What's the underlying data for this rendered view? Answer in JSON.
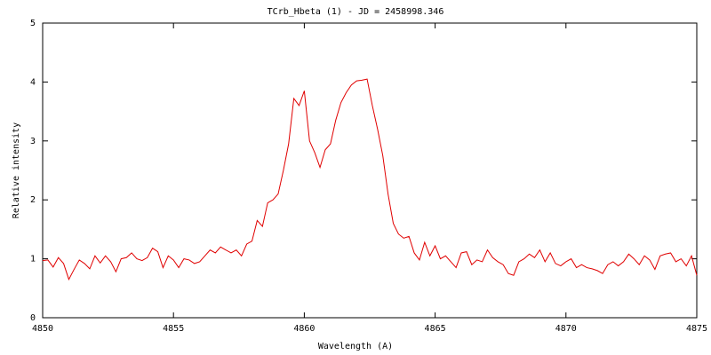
{
  "chart_data": {
    "type": "line",
    "title": "TCrb_Hbeta (1) - JD = 2458998.346",
    "xlabel": "Wavelength (A)",
    "ylabel": "Relative intensity",
    "color": "#e00000",
    "x": [
      4850.0,
      4850.2,
      4850.4,
      4850.6,
      4850.8,
      4851.0,
      4851.2,
      4851.4,
      4851.6,
      4851.8,
      4852.0,
      4852.2,
      4852.4,
      4852.6,
      4852.8,
      4853.0,
      4853.2,
      4853.4,
      4853.6,
      4853.8,
      4854.0,
      4854.2,
      4854.4,
      4854.6,
      4854.8,
      4855.0,
      4855.2,
      4855.4,
      4855.6,
      4855.8,
      4856.0,
      4856.2,
      4856.4,
      4856.6,
      4856.8,
      4857.0,
      4857.2,
      4857.4,
      4857.6,
      4857.8,
      4858.0,
      4858.2,
      4858.4,
      4858.6,
      4858.8,
      4859.0,
      4859.2,
      4859.4,
      4859.6,
      4859.8,
      4860.0,
      4860.2,
      4860.4,
      4860.6,
      4860.8,
      4861.0,
      4861.2,
      4861.4,
      4861.6,
      4861.8,
      4862.0,
      4862.2,
      4862.4,
      4862.6,
      4862.8,
      4863.0,
      4863.2,
      4863.4,
      4863.6,
      4863.8,
      4864.0,
      4864.2,
      4864.4,
      4864.6,
      4864.8,
      4865.0,
      4865.2,
      4865.4,
      4865.6,
      4865.8,
      4866.0,
      4866.2,
      4866.4,
      4866.6,
      4866.8,
      4867.0,
      4867.2,
      4867.4,
      4867.6,
      4867.8,
      4868.0,
      4868.2,
      4868.4,
      4868.6,
      4868.8,
      4869.0,
      4869.2,
      4869.4,
      4869.6,
      4869.8,
      4870.0,
      4870.2,
      4870.4,
      4870.6,
      4870.8,
      4871.0,
      4871.2,
      4871.4,
      4871.6,
      4871.8,
      4872.0,
      4872.2,
      4872.4,
      4872.6,
      4872.8,
      4873.0,
      4873.2,
      4873.4,
      4873.6,
      4873.8,
      4874.0,
      4874.2,
      4874.4,
      4874.6,
      4874.8,
      4875.0
    ],
    "values": [
      0.97,
      0.98,
      0.86,
      1.02,
      0.92,
      0.65,
      0.82,
      0.98,
      0.92,
      0.83,
      1.05,
      0.93,
      1.05,
      0.95,
      0.78,
      1.0,
      1.02,
      1.1,
      1.0,
      0.97,
      1.02,
      1.18,
      1.12,
      0.85,
      1.05,
      0.98,
      0.85,
      1.0,
      0.98,
      0.92,
      0.95,
      1.05,
      1.15,
      1.1,
      1.2,
      1.15,
      1.1,
      1.15,
      1.05,
      1.25,
      1.3,
      1.65,
      1.55,
      1.95,
      2.0,
      2.1,
      2.5,
      2.95,
      3.72,
      3.6,
      3.85,
      3.0,
      2.8,
      2.55,
      2.85,
      2.95,
      3.35,
      3.65,
      3.82,
      3.95,
      4.02,
      4.03,
      4.05,
      3.6,
      3.2,
      2.75,
      2.1,
      1.6,
      1.42,
      1.35,
      1.38,
      1.1,
      0.98,
      1.28,
      1.05,
      1.22,
      1.0,
      1.05,
      0.95,
      0.85,
      1.1,
      1.12,
      0.9,
      0.98,
      0.95,
      1.15,
      1.02,
      0.95,
      0.9,
      0.75,
      0.72,
      0.95,
      1.0,
      1.08,
      1.02,
      1.15,
      0.95,
      1.1,
      0.92,
      0.88,
      0.95,
      1.0,
      0.85,
      0.9,
      0.85,
      0.83,
      0.8,
      0.75,
      0.9,
      0.95,
      0.88,
      0.95,
      1.08,
      1.0,
      0.9,
      1.05,
      0.98,
      0.82,
      1.05,
      1.08,
      1.1,
      0.95,
      1.0,
      0.88,
      1.05,
      0.72
    ],
    "xlim": [
      4850,
      4875
    ],
    "xticks": [
      4850,
      4855,
      4860,
      4865,
      4870,
      4875
    ],
    "ylim": [
      0,
      5
    ],
    "yticks": [
      0,
      1,
      2,
      3,
      4,
      5
    ]
  }
}
